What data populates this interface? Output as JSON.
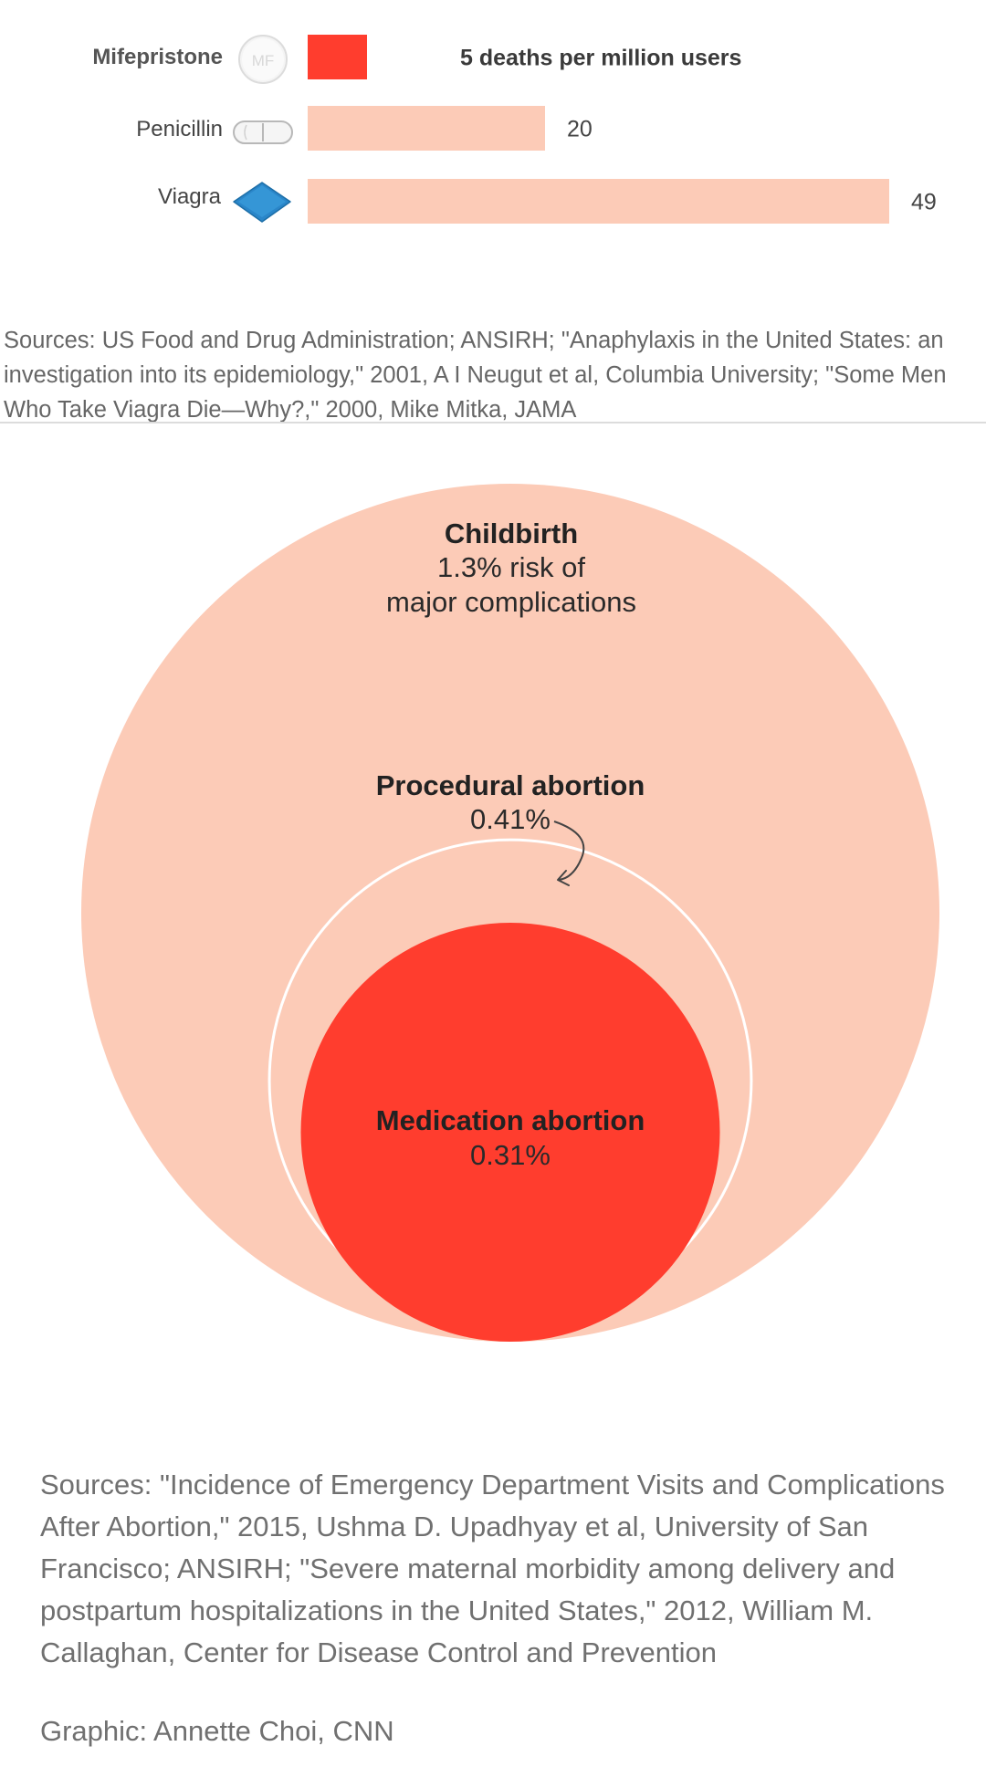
{
  "colors": {
    "highlight": "#ff3d2e",
    "light": "#fccbb7",
    "label": "#222222",
    "source": "#666666"
  },
  "chart_data": [
    {
      "type": "bar",
      "orientation": "horizontal",
      "categories": [
        "Mifepristone",
        "Penicillin",
        "Viagra"
      ],
      "values": [
        5,
        20,
        49
      ],
      "value_labels": [
        "5 deaths per million users",
        "20",
        "49"
      ],
      "highlight_index": 0,
      "pill_icons": [
        "round-white-pill-icon",
        "capsule-icon",
        "blue-diamond-pill-icon"
      ],
      "pill_text": "MF",
      "sources": "Sources: US Food and Drug Administration; ANSIRH; \"Anaphylaxis in the United States: an investigation into its epidemiology,\" 2001, A I Neugut et al, Columbia University; \"Some Men Who Take Viagra Die—Why?,\" 2000, Mike Mitka, JAMA"
    },
    {
      "type": "proportional-area",
      "items": [
        {
          "name": "Childbirth",
          "value": 1.3,
          "value_label": "1.3% risk of",
          "value_label_2": "major complications"
        },
        {
          "name": "Procedural abortion",
          "value": 0.41,
          "value_label": "0.41%"
        },
        {
          "name": "Medication abortion",
          "value": 0.31,
          "value_label": "0.31%"
        }
      ],
      "sources": "Sources: \"Incidence of Emergency Department Visits and Complications After Abortion,\" 2015, Ushma D. Upadhyay et al, University of San Francisco; ANSIRH; \"Severe maternal morbidity among delivery and postpartum hospitalizations in the United States,\" 2012, William M. Callaghan, Center for Disease Control and Prevention",
      "credit": "Graphic: Annette Choi, CNN"
    }
  ]
}
